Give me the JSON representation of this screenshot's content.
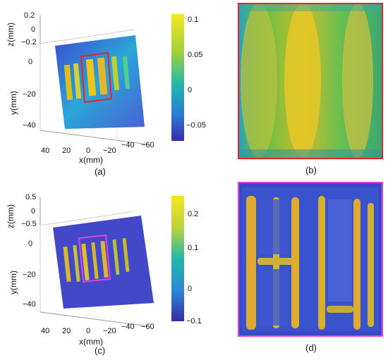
{
  "panel_a": {
    "z_label": "z(mm)",
    "y_label": "y(mm)",
    "x_label": "x(mm)",
    "z_ticks": [
      "0.2",
      "0",
      "−0.2"
    ],
    "y_ticks": [
      "0",
      "−20",
      "−40"
    ],
    "x_ticks": [
      "40",
      "20",
      "0",
      "−20",
      "−40",
      "−60"
    ],
    "colorbar_ticks": [
      "0.1",
      "0.05",
      "0",
      "−0.05"
    ],
    "caption": "(a)",
    "box_color": "#e8232a"
  },
  "panel_b": {
    "caption": "(b)",
    "border_color": "#e8232a"
  },
  "panel_c": {
    "z_label": "z(mm)",
    "y_label": "y(mm)",
    "x_label": "x(mm)",
    "z_ticks": [
      "0.5",
      "0",
      "−0.5"
    ],
    "y_ticks": [
      "0",
      "−20",
      "−40"
    ],
    "x_ticks": [
      "40",
      "20",
      "0",
      "−20",
      "−40",
      "−60"
    ],
    "colorbar_ticks": [
      "0.2",
      "0.1",
      "0",
      "−0.1"
    ],
    "caption": "(c)",
    "box_color": "#e040e0"
  },
  "panel_d": {
    "caption": "(d)",
    "border_color": "#e040e0"
  }
}
